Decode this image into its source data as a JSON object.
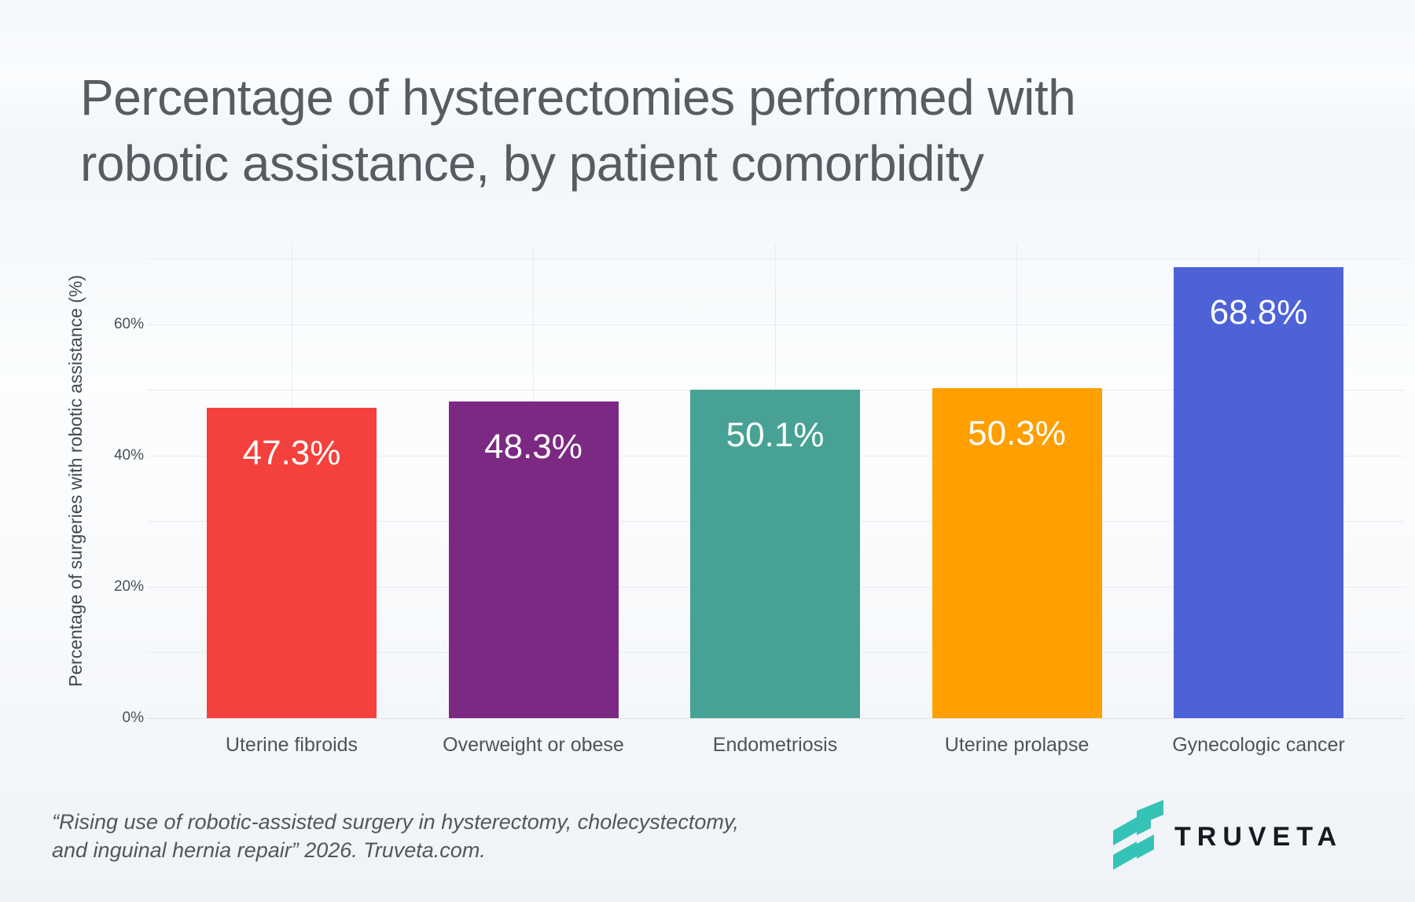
{
  "title": {
    "line1": "Percentage of hysterectomies performed with",
    "line2": "robotic assistance, by patient comorbidity"
  },
  "chart_data": {
    "type": "bar",
    "title": "Percentage of hysterectomies performed with robotic assistance, by patient comorbidity",
    "ylabel": "Percentage of surgeries with robotic assistance (%)",
    "xlabel": "",
    "ylim": [
      0,
      70
    ],
    "grid": true,
    "legend": "none",
    "y_gridlines_pct": [
      0,
      10,
      20,
      30,
      40,
      50,
      60,
      70
    ],
    "y_tick_values": [
      0,
      20,
      40,
      60
    ],
    "y_tick_labels": [
      "0%",
      "20%",
      "40%",
      "60%"
    ],
    "categories": [
      "Uterine fibroids",
      "Overweight or obese",
      "Endometriosis",
      "Uterine prolapse",
      "Gynecologic cancer"
    ],
    "values": [
      47.3,
      48.3,
      50.1,
      50.3,
      68.8
    ],
    "value_labels": [
      "47.3%",
      "48.3%",
      "50.1%",
      "50.3%",
      "68.8%"
    ],
    "bar_colors": [
      "#f5413d",
      "#7c2983",
      "#47a295",
      "#ff9f00",
      "#4e62d8"
    ]
  },
  "footer": {
    "citation_line1": "“Rising use of robotic-assisted surgery in hysterectomy, cholecystectomy,",
    "citation_line2": "and inguinal hernia repair” 2026. Truveta.com."
  },
  "logo": {
    "wordmark": "TRUVETA",
    "mark_color": "#35c3b7",
    "text_color": "#171b21"
  }
}
